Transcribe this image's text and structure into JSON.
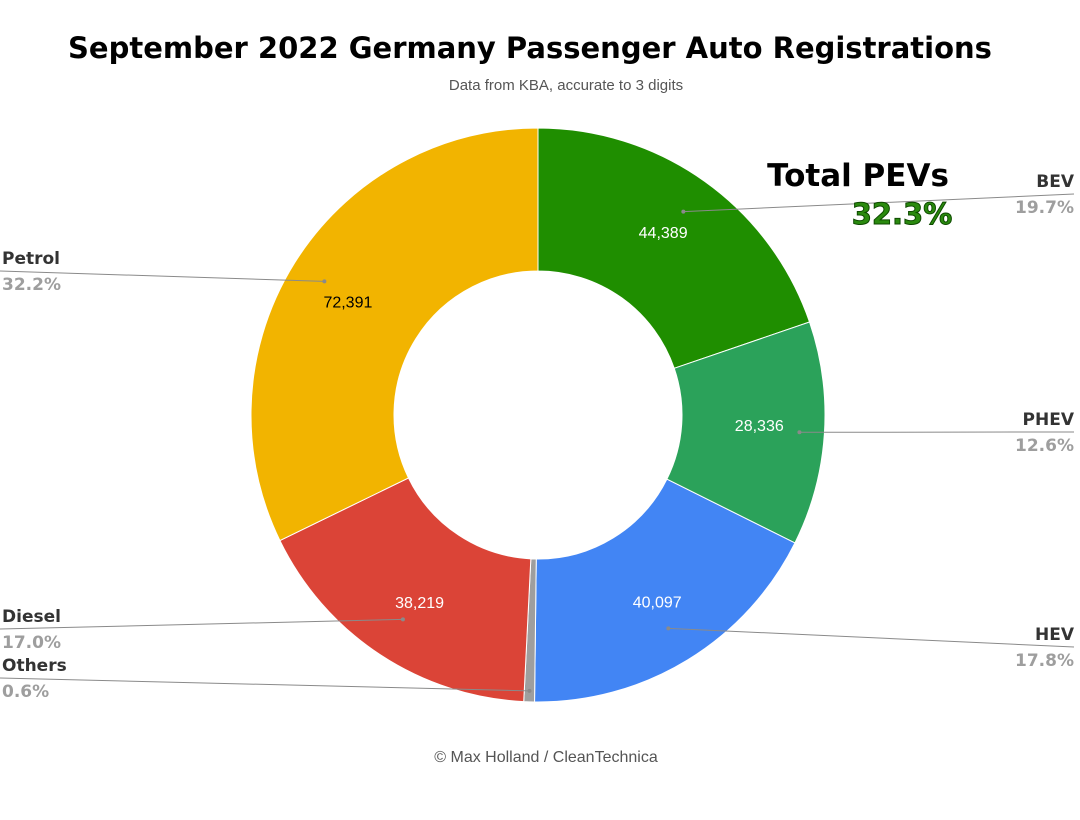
{
  "title": "September 2022 Germany Passenger Auto Registrations",
  "subtitle": "Data from KBA, accurate to 3 digits",
  "credit": "© Max Holland / CleanTechnica",
  "callout": {
    "title": "Total PEVs",
    "value": "32.3%",
    "color": "#2a8a0e"
  },
  "chart_data": {
    "type": "pie",
    "donut": true,
    "title": "September 2022 Germany Passenger Auto Registrations",
    "subtitle": "Data from KBA, accurate to 3 digits",
    "slices": [
      {
        "name": "BEV",
        "value": 44389,
        "value_label": "44,389",
        "percent": "19.7%",
        "color": "#1f8e00",
        "label_color": "#ffffff"
      },
      {
        "name": "PHEV",
        "value": 28336,
        "value_label": "28,336",
        "percent": "12.6%",
        "color": "#2ba25a",
        "label_color": "#ffffff"
      },
      {
        "name": "HEV",
        "value": 40097,
        "value_label": "40,097",
        "percent": "17.8%",
        "color": "#4285f4",
        "label_color": "#ffffff"
      },
      {
        "name": "Others",
        "value": 1350,
        "value_label": "",
        "percent": "0.6%",
        "color": "#9e9e9e",
        "label_color": "#ffffff"
      },
      {
        "name": "Diesel",
        "value": 38219,
        "value_label": "38,219",
        "percent": "17.0%",
        "color": "#db4437",
        "label_color": "#ffffff"
      },
      {
        "name": "Petrol",
        "value": 72391,
        "value_label": "72,391",
        "percent": "32.2%",
        "color": "#f2b400",
        "label_color": "#000000"
      }
    ],
    "legend": "callouts on both sides"
  }
}
